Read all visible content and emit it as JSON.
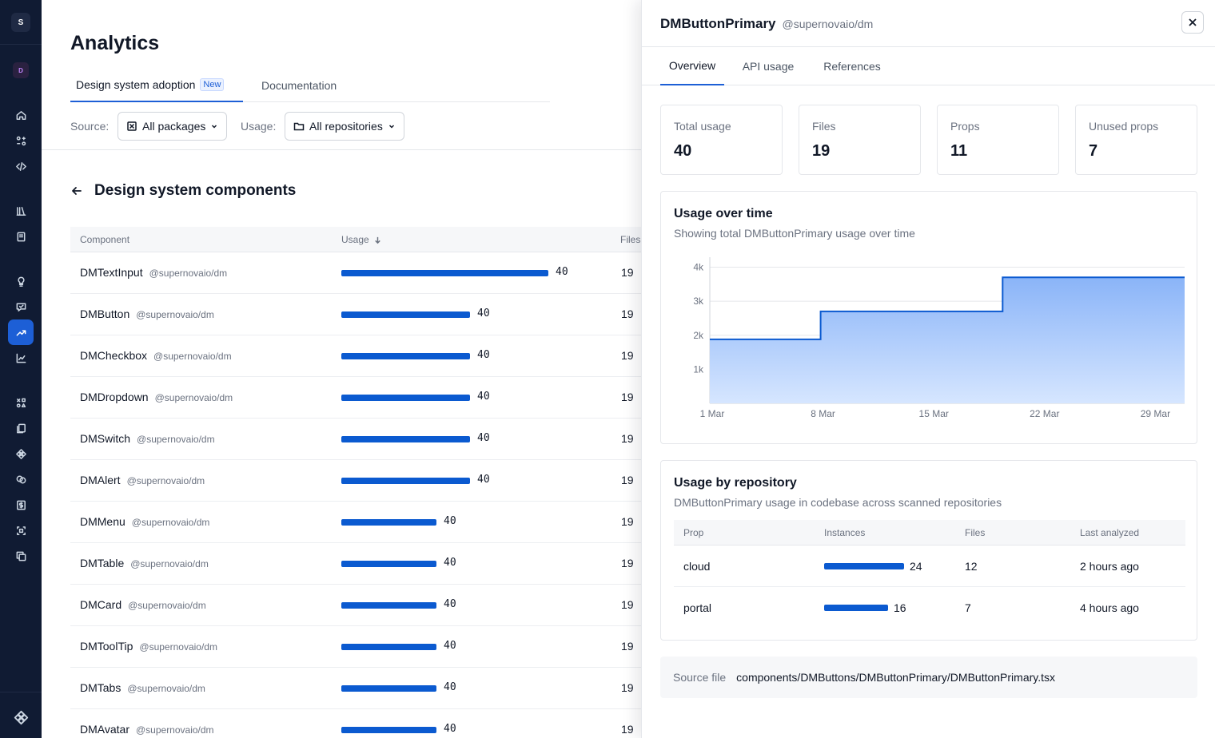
{
  "rail": {
    "workspace_initial": "S",
    "project_initial": "D"
  },
  "page": {
    "title": "Analytics",
    "tabs": [
      {
        "label": "Design system adoption",
        "badge": "New"
      },
      {
        "label": "Documentation"
      }
    ]
  },
  "filters": {
    "source_label": "Source:",
    "source_value": "All packages",
    "usage_label": "Usage:",
    "usage_value": "All repositories"
  },
  "section": {
    "title": "Design system components"
  },
  "components_table": {
    "headers": {
      "component": "Component",
      "usage": "Usage",
      "files": "Files"
    },
    "rows": [
      {
        "name": "DMTextInput",
        "package": "@supernovaio/dm",
        "usage": "40",
        "usage_fraction": 1.0,
        "files": "19"
      },
      {
        "name": "DMButton",
        "package": "@supernovaio/dm",
        "usage": "40",
        "usage_fraction": 0.62,
        "files": "19"
      },
      {
        "name": "DMCheckbox",
        "package": "@supernovaio/dm",
        "usage": "40",
        "usage_fraction": 0.62,
        "files": "19"
      },
      {
        "name": "DMDropdown",
        "package": "@supernovaio/dm",
        "usage": "40",
        "usage_fraction": 0.62,
        "files": "19"
      },
      {
        "name": "DMSwitch",
        "package": "@supernovaio/dm",
        "usage": "40",
        "usage_fraction": 0.62,
        "files": "19"
      },
      {
        "name": "DMAlert",
        "package": "@supernovaio/dm",
        "usage": "40",
        "usage_fraction": 0.62,
        "files": "19"
      },
      {
        "name": "DMMenu",
        "package": "@supernovaio/dm",
        "usage": "40",
        "usage_fraction": 0.46,
        "files": "19"
      },
      {
        "name": "DMTable",
        "package": "@supernovaio/dm",
        "usage": "40",
        "usage_fraction": 0.46,
        "files": "19"
      },
      {
        "name": "DMCard",
        "package": "@supernovaio/dm",
        "usage": "40",
        "usage_fraction": 0.46,
        "files": "19"
      },
      {
        "name": "DMToolTip",
        "package": "@supernovaio/dm",
        "usage": "40",
        "usage_fraction": 0.46,
        "files": "19"
      },
      {
        "name": "DMTabs",
        "package": "@supernovaio/dm",
        "usage": "40",
        "usage_fraction": 0.46,
        "files": "19"
      },
      {
        "name": "DMAvatar",
        "package": "@supernovaio/dm",
        "usage": "40",
        "usage_fraction": 0.46,
        "files": "19"
      }
    ]
  },
  "panel": {
    "title": "DMButtonPrimary",
    "package": "@supernovaio/dm",
    "tabs": [
      "Overview",
      "API usage",
      "References"
    ],
    "stats": [
      {
        "label": "Total usage",
        "value": "40"
      },
      {
        "label": "Files",
        "value": "19"
      },
      {
        "label": "Props",
        "value": "11"
      },
      {
        "label": "Unused props",
        "value": "7"
      }
    ],
    "usage_over_time": {
      "title": "Usage over time",
      "subtitle": "Showing total DMButtonPrimary usage over time"
    },
    "usage_by_repo": {
      "title": "Usage by repository",
      "subtitle": "DMButtonPrimary usage in codebase across scanned repositories",
      "headers": {
        "prop": "Prop",
        "instances": "Instances",
        "files": "Files",
        "last_analyzed": "Last analyzed"
      },
      "rows": [
        {
          "prop": "cloud",
          "instances": "24",
          "instances_fraction": 1.0,
          "files": "12",
          "last_analyzed": "2 hours ago"
        },
        {
          "prop": "portal",
          "instances": "16",
          "instances_fraction": 0.8,
          "files": "7",
          "last_analyzed": "4 hours ago"
        }
      ]
    },
    "source_file": {
      "label": "Source file",
      "path": "components/DMButtons/DMButtonPrimary/DMButtonPrimary.tsx"
    }
  },
  "colors": {
    "rail_bg": "#101b33",
    "accent": "#1d5fd6",
    "bar": "#0b5ad0",
    "area_fill_top": "#8ab4f8",
    "area_fill_bottom": "#d6e6ff"
  },
  "chart_data": {
    "type": "area",
    "step": true,
    "x_ticks": [
      "1 Mar",
      "8 Mar",
      "15 Mar",
      "22 Mar",
      "29 Mar"
    ],
    "y_ticks": [
      "1k",
      "2k",
      "3k",
      "4k"
    ],
    "ylim": [
      0,
      4200
    ],
    "xlim": [
      1,
      31
    ],
    "series": [
      {
        "points": [
          {
            "x": 1,
            "y": 1880
          },
          {
            "x": 8,
            "y": 1880
          },
          {
            "x": 8,
            "y": 2700
          },
          {
            "x": 19.5,
            "y": 2700
          },
          {
            "x": 19.5,
            "y": 3700
          },
          {
            "x": 31,
            "y": 3700
          }
        ]
      }
    ]
  }
}
